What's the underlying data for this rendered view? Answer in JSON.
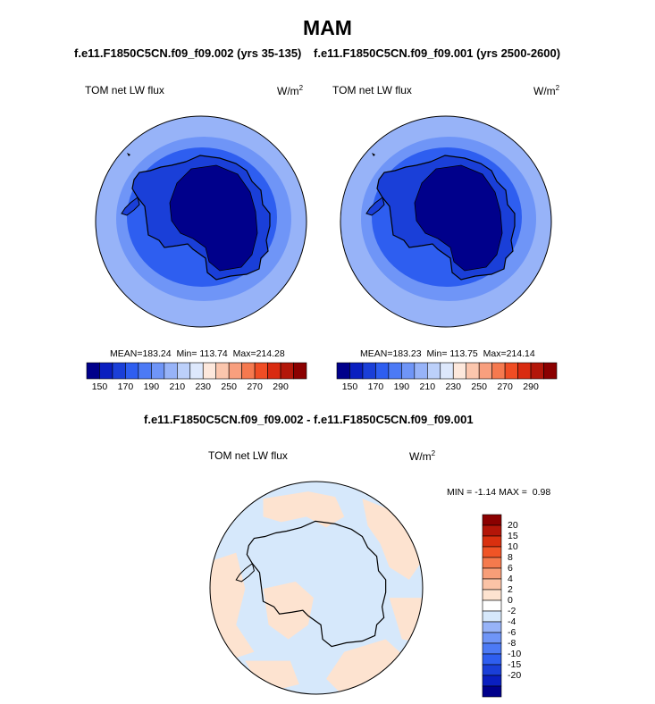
{
  "title": "MAM",
  "colors": {
    "seq_colorbar": [
      "#00008b",
      "#0a1fc0",
      "#1a3fd8",
      "#2e5ef0",
      "#4c7af5",
      "#6f95f7",
      "#97b3f8",
      "#bcd0fa",
      "#dde8fc",
      "#fde8dc",
      "#fbc6ad",
      "#f89f7e",
      "#f5794f",
      "#f04d24",
      "#d92b10",
      "#b3170a",
      "#8b0000"
    ],
    "diff_colorbar": [
      "#00008b",
      "#0a1fc0",
      "#1a3fd8",
      "#2e5ef0",
      "#4c7af5",
      "#6f95f7",
      "#97b3f8",
      "#d6e8fb",
      "#ffffff",
      "#fde3d0",
      "#fbc3a6",
      "#f89e78",
      "#f57a4d",
      "#f05426",
      "#d9300f",
      "#b31508",
      "#8b0000"
    ],
    "continent_core": "#00008b",
    "continent_mid": "#1a3fd8",
    "ring_near": "#2e5ef0",
    "ocean_mid": "#6f95f7",
    "ocean_outer": "#97b3f8",
    "diff_neg": "#d6e8fb",
    "diff_pos": "#fde3d0"
  },
  "chart_data": [
    {
      "type": "heatmap",
      "projection": "south polar stereographic",
      "title": "f.e11.F1850C5CN.f09_f09.002 (yrs 35-135)",
      "left_label": "TOM net LW flux",
      "right_label": "W/m",
      "units_superscript": "2",
      "stats": {
        "mean_label": "MEAN=",
        "mean": 183.24,
        "min_label": "Min=",
        "min": 113.74,
        "max_label": "Max=",
        "max": 214.28
      },
      "colorbar_ticks": [
        "150",
        "170",
        "190",
        "210",
        "230",
        "250",
        "270",
        "290"
      ]
    },
    {
      "type": "heatmap",
      "projection": "south polar stereographic",
      "title": "f.e11.F1850C5CN.f09_f09.001 (yrs 2500-2600)",
      "left_label": "TOM net LW flux",
      "right_label": "W/m",
      "units_superscript": "2",
      "stats": {
        "mean_label": "MEAN=",
        "mean": 183.23,
        "min_label": "Min=",
        "min": 113.75,
        "max_label": "Max=",
        "max": 214.14
      },
      "colorbar_ticks": [
        "150",
        "170",
        "190",
        "210",
        "230",
        "250",
        "270",
        "290"
      ]
    },
    {
      "type": "heatmap",
      "projection": "south polar stereographic",
      "title": "f.e11.F1850C5CN.f09_f09.002 - f.e11.F1850C5CN.f09_f09.001",
      "left_label": "TOM net LW flux",
      "right_label": "W/m",
      "units_superscript": "2",
      "stats": {
        "min_label": "MIN =",
        "min": -1.14,
        "max_label": "MAX =",
        "max": 0.98
      },
      "colorbar_ticks": [
        "20",
        "15",
        "10",
        "8",
        "6",
        "4",
        "2",
        "0",
        "-2",
        "-4",
        "-6",
        "-8",
        "-10",
        "-15",
        "-20"
      ]
    }
  ]
}
